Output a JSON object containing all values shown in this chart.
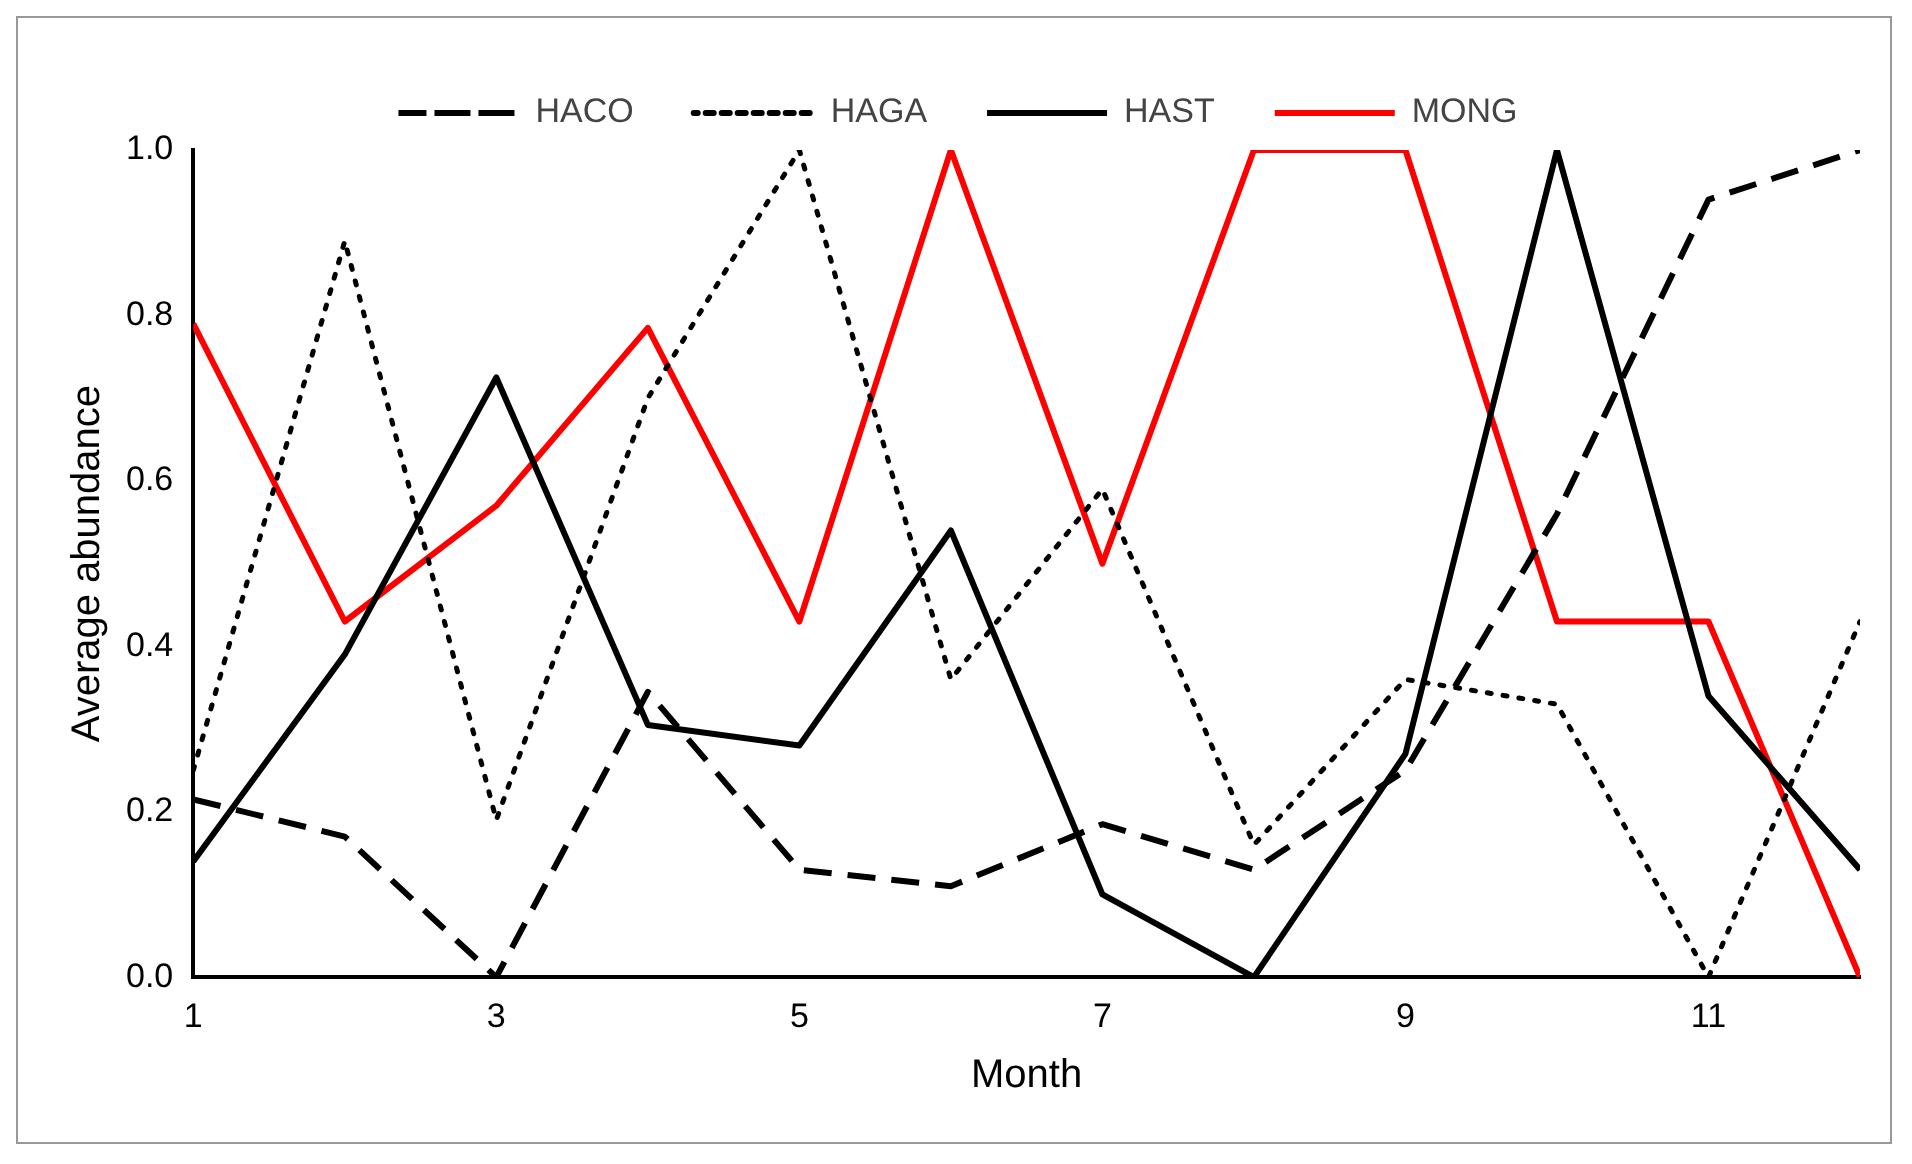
{
  "chart_data": {
    "type": "line",
    "xlabel": "Month",
    "ylabel": "Average abundance",
    "x": [
      1,
      2,
      3,
      4,
      5,
      6,
      7,
      8,
      9,
      10,
      11,
      12
    ],
    "xlim": [
      1,
      12
    ],
    "xticks": [
      1,
      3,
      5,
      7,
      9,
      11
    ],
    "ylim": [
      0,
      1
    ],
    "yticks": [
      {
        "value": 0,
        "label": "0.0"
      },
      {
        "value": 0.2,
        "label": "0.2"
      },
      {
        "value": 0.4,
        "label": "0.4"
      },
      {
        "value": 0.6,
        "label": "0.6"
      },
      {
        "value": 0.8,
        "label": "0.8"
      },
      {
        "value": 1,
        "label": "1.0"
      }
    ],
    "grid": false,
    "legend": "top",
    "marker": "none",
    "series": [
      {
        "name": "HACO",
        "color": "#000000",
        "line_style": "dashed",
        "values": [
          0.215,
          0.17,
          0.0,
          0.345,
          0.13,
          0.11,
          0.185,
          0.13,
          0.25,
          0.56,
          0.94,
          1.0
        ]
      },
      {
        "name": "HAGA",
        "color": "#000000",
        "line_style": "dotted",
        "values": [
          0.25,
          0.89,
          0.19,
          0.7,
          1.0,
          0.36,
          0.59,
          0.16,
          0.36,
          0.33,
          0.0,
          0.43
        ]
      },
      {
        "name": "HAST",
        "color": "#000000",
        "line_style": "solid",
        "values": [
          0.14,
          0.39,
          0.725,
          0.305,
          0.28,
          0.54,
          0.1,
          0.0,
          0.27,
          1.0,
          0.34,
          0.13
        ]
      },
      {
        "name": "MONG",
        "color": "#ff0000",
        "line_style": "solid",
        "values": [
          0.79,
          0.43,
          0.57,
          0.785,
          0.43,
          1.0,
          0.5,
          1.0,
          1.0,
          0.43,
          0.43,
          0.0
        ]
      }
    ]
  }
}
